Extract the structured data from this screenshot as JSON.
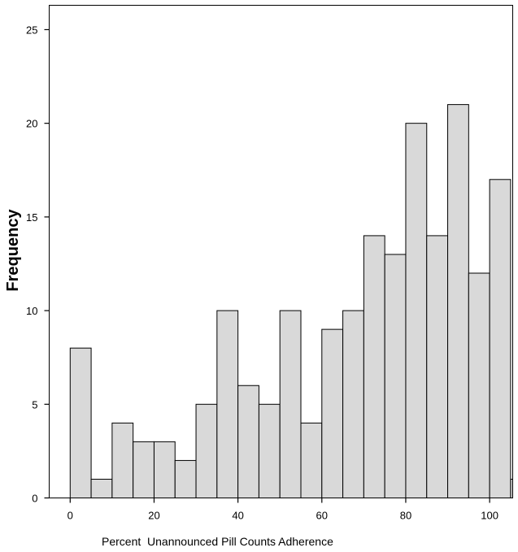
{
  "chart_data": {
    "type": "bar",
    "title": "",
    "xlabel": "Percent  Unannounced Pill Counts Adherence",
    "ylabel": "Frequency",
    "xlim": [
      -5,
      105.5
    ],
    "ylim": [
      0,
      26.3
    ],
    "xticks": [
      0,
      20,
      40,
      60,
      80,
      100
    ],
    "yticks": [
      0,
      5,
      10,
      15,
      20,
      25
    ],
    "bin_width": 5,
    "bins": [
      {
        "start": 0,
        "count": 8
      },
      {
        "start": 5,
        "count": 1
      },
      {
        "start": 10,
        "count": 4
      },
      {
        "start": 15,
        "count": 3
      },
      {
        "start": 20,
        "count": 3
      },
      {
        "start": 25,
        "count": 2
      },
      {
        "start": 30,
        "count": 5
      },
      {
        "start": 35,
        "count": 10
      },
      {
        "start": 40,
        "count": 6
      },
      {
        "start": 45,
        "count": 5
      },
      {
        "start": 50,
        "count": 10
      },
      {
        "start": 55,
        "count": 4
      },
      {
        "start": 60,
        "count": 9
      },
      {
        "start": 65,
        "count": 10
      },
      {
        "start": 70,
        "count": 14
      },
      {
        "start": 75,
        "count": 13
      },
      {
        "start": 80,
        "count": 20
      },
      {
        "start": 85,
        "count": 14
      },
      {
        "start": 90,
        "count": 21
      },
      {
        "start": 95,
        "count": 12
      },
      {
        "start": 100,
        "count": 17
      },
      {
        "start": 105,
        "count": 1
      }
    ],
    "grid": false,
    "legend": "none",
    "bar_color": "#d9d9d9"
  }
}
